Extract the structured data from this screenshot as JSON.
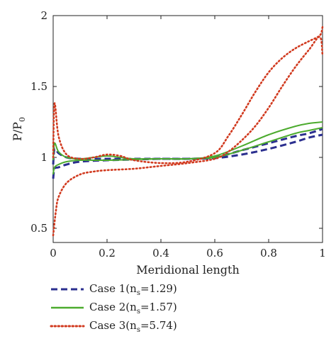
{
  "chart_data": {
    "type": "line",
    "xlabel": "Meridional length",
    "ylabel": "P/P",
    "ylabel_sub": "0",
    "xlim": [
      0,
      1
    ],
    "ylim": [
      0.4,
      2
    ],
    "xticks": [
      "0",
      "0.2",
      "0.4",
      "0.6",
      "0.8",
      "1"
    ],
    "xtick_values": [
      0,
      0.2,
      0.4,
      0.6,
      0.8,
      1
    ],
    "yticks": [
      "0.5",
      "1",
      "1.5",
      "2"
    ],
    "ytick_values": [
      0.5,
      1,
      1.5,
      2
    ],
    "grid": false,
    "legend_position": "bottom",
    "series": [
      {
        "name_main": "Case 1(n",
        "name_sub": "s",
        "name_rest": "=1.29)",
        "color": "#2b2f8f",
        "style": "dashed",
        "curves": [
          {
            "x": [
              0,
              0.005,
              0.02,
              0.05,
              0.1,
              0.2,
              0.3,
              0.4,
              0.5,
              0.6,
              0.7,
              0.8,
              0.9,
              0.95,
              1.0
            ],
            "y": [
              0.95,
              1.06,
              1.03,
              1.0,
              0.99,
              0.99,
              0.99,
              0.99,
              0.99,
              1.0,
              1.05,
              1.1,
              1.15,
              1.17,
              1.2
            ]
          },
          {
            "x": [
              0,
              0.005,
              0.02,
              0.05,
              0.1,
              0.2,
              0.3,
              0.4,
              0.5,
              0.6,
              0.7,
              0.8,
              0.9,
              0.95,
              1.0
            ],
            "y": [
              0.85,
              0.92,
              0.93,
              0.95,
              0.97,
              0.98,
              0.985,
              0.99,
              0.99,
              0.995,
              1.02,
              1.06,
              1.11,
              1.14,
              1.16
            ]
          }
        ]
      },
      {
        "name_main": "Case 2(n",
        "name_sub": "s",
        "name_rest": "=1.57)",
        "color": "#4cab2e",
        "style": "solid",
        "curves": [
          {
            "x": [
              0,
              0.005,
              0.02,
              0.05,
              0.1,
              0.15,
              0.2,
              0.25,
              0.3,
              0.4,
              0.5,
              0.6,
              0.7,
              0.8,
              0.9,
              0.95,
              1.0
            ],
            "y": [
              0.98,
              1.1,
              1.04,
              1.0,
              0.99,
              1.0,
              1.01,
              1.0,
              0.99,
              0.99,
              0.99,
              1.01,
              1.08,
              1.16,
              1.22,
              1.24,
              1.25
            ]
          },
          {
            "x": [
              0,
              0.005,
              0.02,
              0.05,
              0.1,
              0.2,
              0.3,
              0.4,
              0.5,
              0.6,
              0.7,
              0.8,
              0.9,
              0.95,
              1.0
            ],
            "y": [
              0.88,
              0.93,
              0.95,
              0.97,
              0.98,
              0.98,
              0.985,
              0.99,
              0.99,
              1.0,
              1.05,
              1.11,
              1.17,
              1.19,
              1.21
            ]
          }
        ]
      },
      {
        "name_main": "Case 3(n",
        "name_sub": "s",
        "name_rest": "=5.74)",
        "color": "#d13a1f",
        "style": "dotted",
        "curves": [
          {
            "x": [
              0,
              0.005,
              0.02,
              0.05,
              0.1,
              0.15,
              0.2,
              0.25,
              0.3,
              0.4,
              0.5,
              0.6,
              0.65,
              0.7,
              0.75,
              0.8,
              0.85,
              0.9,
              0.95,
              0.99,
              1.0
            ],
            "y": [
              1.0,
              1.38,
              1.15,
              1.02,
              0.99,
              1.0,
              1.02,
              1.01,
              0.98,
              0.96,
              0.97,
              1.03,
              1.15,
              1.3,
              1.46,
              1.6,
              1.7,
              1.77,
              1.82,
              1.86,
              1.92
            ]
          },
          {
            "x": [
              0,
              0.01,
              0.02,
              0.05,
              0.1,
              0.15,
              0.2,
              0.3,
              0.4,
              0.5,
              0.6,
              0.65,
              0.7,
              0.75,
              0.8,
              0.85,
              0.9,
              0.95,
              0.99,
              1.0
            ],
            "y": [
              0.45,
              0.62,
              0.72,
              0.82,
              0.88,
              0.9,
              0.91,
              0.92,
              0.94,
              0.96,
              0.99,
              1.04,
              1.12,
              1.22,
              1.35,
              1.5,
              1.64,
              1.76,
              1.85,
              1.72
            ]
          }
        ]
      }
    ]
  }
}
